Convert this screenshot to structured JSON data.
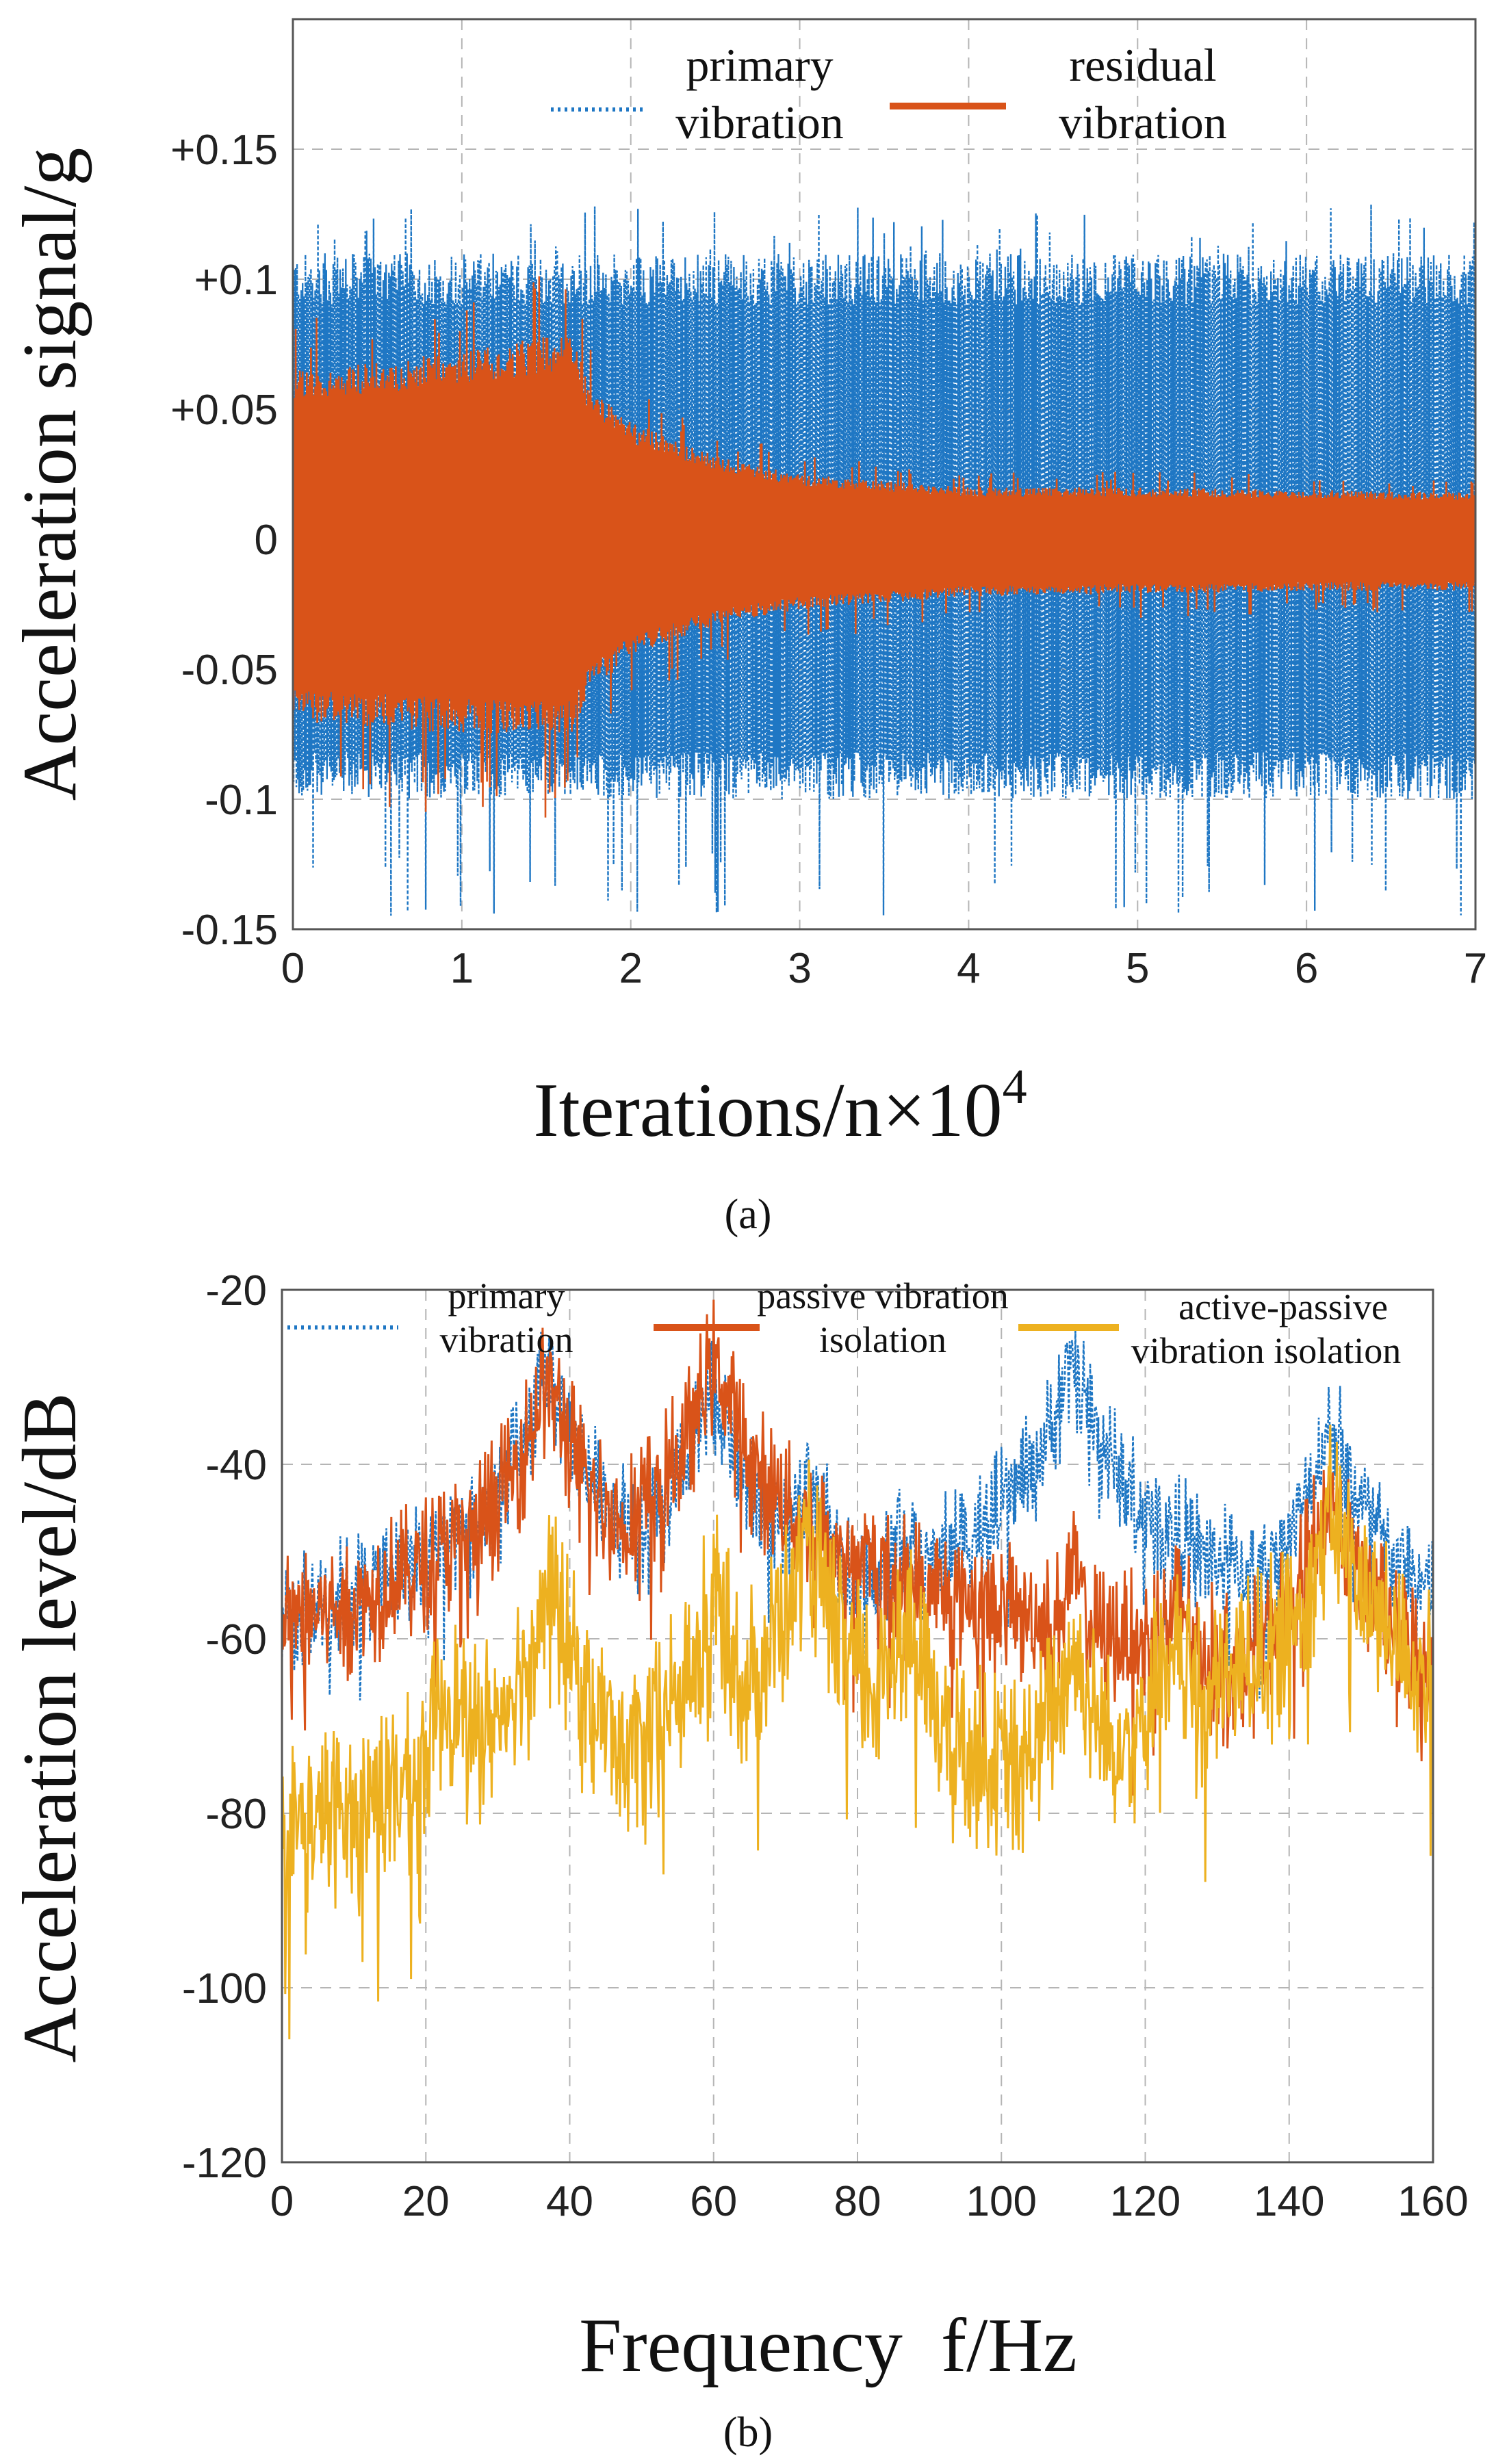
{
  "chart_data": [
    {
      "type": "line",
      "panel_label": "(a)",
      "xlabel": "Iterations/n×10",
      "xlabel_exponent": "4",
      "ylabel": "Acceleration signal/g",
      "xlim": [
        0,
        7
      ],
      "ylim": [
        -0.15,
        0.2
      ],
      "x_ticks": [
        0,
        1,
        2,
        3,
        4,
        5,
        6,
        7
      ],
      "x_tick_labels": [
        "0",
        "1",
        "2",
        "3",
        "4",
        "5",
        "6",
        "7"
      ],
      "y_ticks": [
        -0.15,
        -0.1,
        -0.05,
        0,
        0.05,
        0.1,
        0.15
      ],
      "y_tick_labels": [
        "-0.15",
        "-0.1",
        "-0.05",
        "0",
        "+0.05",
        "+0.1",
        "+0.15"
      ],
      "grid": true,
      "legend_position": "top",
      "series": [
        {
          "name_lines": [
            "primary",
            "vibration"
          ],
          "color": "#1f77c4",
          "style": "dotted",
          "envelope": {
            "x": [
              0,
              1,
              1.7,
              2,
              3,
              4,
              5,
              6,
              7
            ],
            "upper": [
              0.11,
              0.11,
              0.11,
              0.11,
              0.11,
              0.11,
              0.11,
              0.11,
              0.11
            ],
            "lower": [
              -0.1,
              -0.1,
              -0.1,
              -0.1,
              -0.1,
              -0.1,
              -0.1,
              -0.1,
              -0.1
            ],
            "peak": 0.13
          }
        },
        {
          "name_lines": [
            "residual",
            "vibration"
          ],
          "color": "#d95319",
          "style": "solid",
          "envelope": {
            "x": [
              0,
              1,
              1.65,
              1.75,
              2,
              2.5,
              3,
              4,
              5,
              6,
              7
            ],
            "upper": [
              0.065,
              0.072,
              0.08,
              0.06,
              0.045,
              0.032,
              0.025,
              0.02,
              0.02,
              0.019,
              0.018
            ],
            "lower": [
              -0.07,
              -0.075,
              -0.075,
              -0.06,
              -0.045,
              -0.033,
              -0.027,
              -0.022,
              -0.021,
              -0.02,
              -0.02
            ],
            "peak": 0.085
          }
        }
      ]
    },
    {
      "type": "line",
      "panel_label": "(b)",
      "xlabel": "Frequency  f/Hz",
      "ylabel": "Acceleration level/dB",
      "xlim": [
        0,
        160
      ],
      "ylim": [
        -120,
        -20
      ],
      "x_ticks": [
        0,
        20,
        40,
        60,
        80,
        100,
        120,
        140,
        160
      ],
      "x_tick_labels": [
        "0",
        "20",
        "40",
        "60",
        "80",
        "100",
        "120",
        "140",
        "160"
      ],
      "y_ticks": [
        -120,
        -100,
        -80,
        -60,
        -40,
        -20
      ],
      "y_tick_labels": [
        "-120",
        "-100",
        "-80",
        "-60",
        "-40",
        "-20"
      ],
      "grid": true,
      "legend_position": "top",
      "series": [
        {
          "name_lines": [
            "primary",
            "vibration"
          ],
          "color": "#1f77c4",
          "style": "dotted",
          "base": -79,
          "noise": 6,
          "peaks": [
            [
              23,
              -57
            ],
            [
              37,
              -30
            ],
            [
              49,
              -64
            ],
            [
              60,
              -32
            ],
            [
              73,
              -41
            ],
            [
              86,
              -47
            ],
            [
              110,
              -29
            ],
            [
              122,
              -52
            ],
            [
              125,
              -48
            ],
            [
              146,
              -36
            ],
            [
              149,
              -47
            ]
          ]
        },
        {
          "name_lines": [
            "passive vibration",
            "isolation"
          ],
          "color": "#d95319",
          "style": "solid",
          "base": -86,
          "noise": 7,
          "peaks": [
            [
              23,
              -65
            ],
            [
              37,
              -31
            ],
            [
              49,
              -70
            ],
            [
              60,
              -29
            ],
            [
              73,
              -46
            ],
            [
              86,
              -56
            ],
            [
              110,
              -53
            ],
            [
              122,
              -58
            ],
            [
              125,
              -56
            ],
            [
              146,
              -44
            ],
            [
              149,
              -52
            ]
          ]
        },
        {
          "name_lines": [
            "active-passive",
            "vibration isolation"
          ],
          "color": "#edb120",
          "style": "solid",
          "base": -92,
          "noise": 9,
          "peaks": [
            [
              23,
              -66
            ],
            [
              37,
              -55
            ],
            [
              49,
              -74
            ],
            [
              60,
              -56
            ],
            [
              73,
              -50
            ],
            [
              86,
              -58
            ],
            [
              110,
              -62
            ],
            [
              122,
              -64
            ],
            [
              125,
              -62
            ],
            [
              146,
              -46
            ],
            [
              149,
              -55
            ]
          ]
        }
      ]
    }
  ]
}
